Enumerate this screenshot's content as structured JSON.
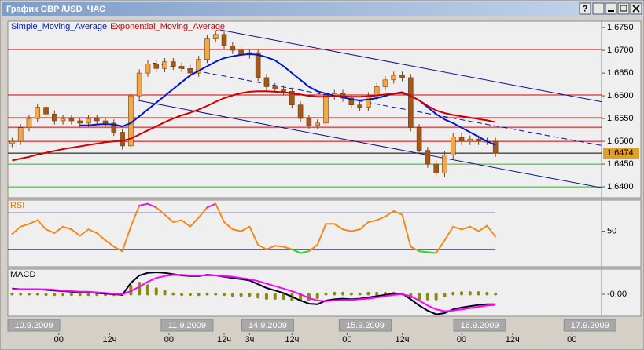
{
  "window": {
    "title": "График GBP /USD  ЧАС",
    "help_button": "?"
  },
  "chart_data": [
    {
      "type": "candlestick",
      "x": [
        1,
        3,
        5,
        7,
        9,
        11,
        13,
        15,
        17,
        19,
        21,
        23,
        25,
        27,
        29,
        31,
        33,
        35,
        37,
        39,
        41,
        43,
        45,
        47,
        49,
        51,
        53,
        55,
        57,
        59,
        61,
        63,
        65,
        67,
        69,
        71,
        73,
        75,
        77,
        79,
        81,
        83,
        85,
        87,
        89,
        91,
        93,
        95,
        97,
        99,
        101,
        103,
        105,
        107,
        109,
        111,
        113,
        115
      ],
      "open": [
        1.6495,
        1.65,
        1.653,
        1.655,
        1.6575,
        1.656,
        1.6545,
        1.655,
        1.6545,
        1.654,
        1.655,
        1.6545,
        1.654,
        1.652,
        1.649,
        1.66,
        1.665,
        1.667,
        1.666,
        1.6675,
        1.6665,
        1.666,
        1.665,
        1.668,
        1.6725,
        1.6735,
        1.671,
        1.67,
        1.669,
        1.6695,
        1.664,
        1.662,
        1.6615,
        1.661,
        1.658,
        1.655,
        1.6535,
        1.654,
        1.66,
        1.6605,
        1.6595,
        1.658,
        1.6575,
        1.66,
        1.662,
        1.6635,
        1.6645,
        1.664,
        1.653,
        1.648,
        1.645,
        1.643,
        1.647,
        1.651,
        1.65,
        1.6505,
        1.65,
        1.65
      ],
      "high": [
        1.6508,
        1.6538,
        1.6558,
        1.6583,
        1.6583,
        1.6568,
        1.6558,
        1.6558,
        1.6553,
        1.6558,
        1.6558,
        1.6553,
        1.6548,
        1.6528,
        1.6608,
        1.6658,
        1.6678,
        1.6678,
        1.6683,
        1.6683,
        1.6673,
        1.6668,
        1.6688,
        1.6733,
        1.6743,
        1.6743,
        1.6718,
        1.6708,
        1.6703,
        1.6703,
        1.6648,
        1.6628,
        1.6623,
        1.6618,
        1.6588,
        1.6558,
        1.6548,
        1.6608,
        1.6613,
        1.6613,
        1.6603,
        1.6588,
        1.6608,
        1.6628,
        1.6643,
        1.6653,
        1.6653,
        1.6648,
        1.6538,
        1.6488,
        1.6458,
        1.6478,
        1.6518,
        1.6518,
        1.6513,
        1.6513,
        1.6508,
        1.6508
      ],
      "low": [
        1.6487,
        1.6492,
        1.6522,
        1.6542,
        1.6552,
        1.6537,
        1.6537,
        1.6537,
        1.6532,
        1.6532,
        1.6537,
        1.6532,
        1.6512,
        1.6482,
        1.6482,
        1.6592,
        1.6642,
        1.6652,
        1.6652,
        1.6657,
        1.6652,
        1.6642,
        1.6642,
        1.6672,
        1.6717,
        1.6702,
        1.6692,
        1.6682,
        1.6682,
        1.6632,
        1.6612,
        1.6607,
        1.6602,
        1.6572,
        1.6542,
        1.6527,
        1.6527,
        1.6532,
        1.6592,
        1.6587,
        1.6572,
        1.6567,
        1.6567,
        1.6592,
        1.6612,
        1.6627,
        1.6632,
        1.6522,
        1.6472,
        1.6442,
        1.6422,
        1.6422,
        1.6462,
        1.6492,
        1.6492,
        1.6492,
        1.6492,
        1.6466
      ],
      "close": [
        1.65,
        1.653,
        1.655,
        1.6575,
        1.656,
        1.6545,
        1.655,
        1.6545,
        1.654,
        1.655,
        1.6545,
        1.654,
        1.652,
        1.649,
        1.66,
        1.665,
        1.667,
        1.666,
        1.6675,
        1.6665,
        1.666,
        1.665,
        1.668,
        1.6725,
        1.6735,
        1.671,
        1.67,
        1.669,
        1.6695,
        1.664,
        1.662,
        1.6615,
        1.661,
        1.658,
        1.655,
        1.6535,
        1.654,
        1.66,
        1.6605,
        1.6595,
        1.658,
        1.6575,
        1.66,
        1.662,
        1.6635,
        1.6645,
        1.664,
        1.653,
        1.648,
        1.645,
        1.643,
        1.647,
        1.651,
        1.65,
        1.6505,
        1.65,
        1.65,
        1.6474
      ],
      "up_color": "#f0a848",
      "down_color": "#a0581c",
      "wick_color": "#7a4010",
      "series": [
        {
          "name": "Simple_Moving_Average",
          "color": "#0018c8",
          "values": [
            null,
            null,
            null,
            null,
            null,
            null,
            null,
            null,
            1.6535,
            1.6535,
            1.6537,
            1.6538,
            1.6537,
            1.6533,
            1.654,
            1.6555,
            1.657,
            1.6585,
            1.66,
            1.6615,
            1.663,
            1.6645,
            1.6655,
            1.6665,
            1.6675,
            1.6683,
            1.6687,
            1.669,
            1.6692,
            1.669,
            1.6685,
            1.6678,
            1.6665,
            1.665,
            1.6635,
            1.662,
            1.661,
            1.6605,
            1.66,
            1.6597,
            1.6592,
            1.659,
            1.6592,
            1.6595,
            1.66,
            1.6605,
            1.6608,
            1.66,
            1.659,
            1.6575,
            1.656,
            1.6548,
            1.654,
            1.653,
            1.652,
            1.651,
            1.65,
            1.6492
          ]
        },
        {
          "name": "Exponential_Moving_Average",
          "color": "#d00000",
          "values": [
            1.6458,
            1.6462,
            1.6466,
            1.6471,
            1.6475,
            1.6479,
            1.6483,
            1.6486,
            1.6489,
            1.6492,
            1.6495,
            1.6498,
            1.65,
            1.6501,
            1.6506,
            1.6515,
            1.6524,
            1.6533,
            1.6542,
            1.655,
            1.6557,
            1.6563,
            1.657,
            1.6578,
            1.6587,
            1.6595,
            1.6601,
            1.6606,
            1.6609,
            1.661,
            1.661,
            1.6609,
            1.6608,
            1.6606,
            1.6603,
            1.66,
            1.6598,
            1.6598,
            1.6599,
            1.6599,
            1.6598,
            1.6598,
            1.6599,
            1.6601,
            1.6603,
            1.6605,
            1.6606,
            1.66,
            1.659,
            1.6578,
            1.6568,
            1.6562,
            1.6558,
            1.6555,
            1.6552,
            1.6549,
            1.6546,
            1.6542
          ]
        }
      ],
      "levels": [
        {
          "value": 1.6702,
          "color": "#d00000"
        },
        {
          "value": 1.6602,
          "color": "#d00000"
        },
        {
          "value": 1.6552,
          "color": "#d00000"
        },
        {
          "value": 1.6531,
          "color": "#d00000"
        },
        {
          "value": 1.65,
          "color": "#d00000"
        },
        {
          "value": 1.645,
          "color": "#22bb22"
        },
        {
          "value": 1.64,
          "color": "#22bb22"
        }
      ],
      "trendlines": [
        {
          "x": [
            50,
            140
          ],
          "values": [
            1.6745,
            1.6587
          ],
          "color": "#101090",
          "dashed": false
        },
        {
          "x": [
            34.3,
            140
          ],
          "values": [
            1.6672,
            1.6491
          ],
          "color": "#101090",
          "dashed": true
        },
        {
          "x": [
            30.6,
            140
          ],
          "values": [
            1.659,
            1.6398
          ],
          "color": "#101090",
          "dashed": false
        }
      ],
      "last_price": 1.6474,
      "last_price_color": "#e0a030",
      "xlim": [
        0,
        140
      ],
      "ylim": [
        1.6376,
        1.6764
      ],
      "yticks": [
        {
          "value": 1.675,
          "label": "1.6750"
        },
        {
          "value": 1.67,
          "label": "1.6700"
        },
        {
          "value": 1.665,
          "label": "1.6650"
        },
        {
          "value": 1.66,
          "label": "1.6600"
        },
        {
          "value": 1.655,
          "label": "1.6550"
        },
        {
          "value": 1.65,
          "label": "1.6500"
        },
        {
          "value": 1.645,
          "label": "1.6450"
        },
        {
          "value": 1.64,
          "label": "1.6400"
        }
      ]
    },
    {
      "type": "line",
      "title": "RSI",
      "title_color": "#e07800",
      "x": [
        1,
        3,
        5,
        7,
        9,
        11,
        13,
        15,
        17,
        19,
        21,
        23,
        25,
        27,
        29,
        31,
        33,
        35,
        37,
        39,
        41,
        43,
        45,
        47,
        49,
        51,
        53,
        55,
        57,
        59,
        61,
        63,
        65,
        67,
        69,
        71,
        73,
        75,
        77,
        79,
        81,
        83,
        85,
        87,
        89,
        91,
        93,
        95,
        97,
        99,
        101,
        103,
        105,
        107,
        109,
        111,
        113,
        115
      ],
      "values": [
        47,
        55,
        58,
        62,
        52,
        48,
        55,
        52,
        45,
        52,
        48,
        40,
        33,
        28,
        55,
        78,
        80,
        76,
        68,
        60,
        62,
        55,
        65,
        76,
        80,
        60,
        52,
        50,
        55,
        35,
        30,
        34,
        33,
        30,
        26,
        28,
        35,
        58,
        58,
        52,
        50,
        52,
        60,
        62,
        66,
        72,
        68,
        33,
        28,
        27,
        26,
        40,
        55,
        52,
        55,
        50,
        56,
        44
      ],
      "color": "#f08a20",
      "over_color": "#e020e0",
      "under_color": "#22dd22",
      "levels": [
        70,
        30
      ],
      "level_color": "#101090",
      "xlim": [
        0,
        140
      ],
      "ylim": [
        11,
        84
      ],
      "yticks": [
        50
      ]
    },
    {
      "type": "macd",
      "title": "MACD",
      "title_color": "#000000",
      "x": [
        1,
        3,
        5,
        7,
        9,
        11,
        13,
        15,
        17,
        19,
        21,
        23,
        25,
        27,
        29,
        31,
        33,
        35,
        37,
        39,
        41,
        43,
        45,
        47,
        49,
        51,
        53,
        55,
        57,
        59,
        61,
        63,
        65,
        67,
        69,
        71,
        73,
        75,
        77,
        79,
        81,
        83,
        85,
        87,
        89,
        91,
        93,
        95,
        97,
        99,
        101,
        103,
        105,
        107,
        109,
        111,
        113,
        115
      ],
      "series": [
        {
          "color": "#000020",
          "values": [
            0.0009,
            0.0008,
            0.0008,
            0.0008,
            0.0007,
            0.0006,
            0.0005,
            0.0004,
            0.0003,
            0.0003,
            0.0002,
            0.0001,
            0,
            -0.0001,
            0.0018,
            0.003,
            0.0034,
            0.0035,
            0.0034,
            0.0032,
            0.003,
            0.0029,
            0.0029,
            0.0031,
            0.003,
            0.0028,
            0.0026,
            0.0024,
            0.0022,
            0.0016,
            0.001,
            0.0006,
            0.0002,
            -0.0004,
            -0.001,
            -0.0015,
            -0.0016,
            -0.001,
            -0.0008,
            -0.0007,
            -0.0008,
            -0.0007,
            -0.0005,
            -0.0003,
            -0.0001,
            0.0001,
            0.0001,
            -0.0008,
            -0.0018,
            -0.0026,
            -0.0032,
            -0.003,
            -0.0024,
            -0.0021,
            -0.0019,
            -0.0017,
            -0.0016,
            -0.0016
          ]
        },
        {
          "color": "#ff00ff",
          "values": [
            0.0008,
            0.0008,
            0.0008,
            0.0008,
            0.0008,
            0.0007,
            0.0006,
            0.0005,
            0.0004,
            0.0004,
            0.0003,
            0.0002,
            0.0001,
            0,
            0.0005,
            0.0012,
            0.002,
            0.0026,
            0.0029,
            0.0031,
            0.0031,
            0.003,
            0.003,
            0.003,
            0.003,
            0.0029,
            0.0028,
            0.0026,
            0.0024,
            0.0021,
            0.0017,
            0.0013,
            0.0009,
            0.0005,
            0,
            -0.0006,
            -0.001,
            -0.0011,
            -0.001,
            -0.0009,
            -0.0009,
            -0.0008,
            -0.0007,
            -0.0005,
            -0.0003,
            -0.0001,
            0,
            -0.0003,
            -0.001,
            -0.0018,
            -0.0024,
            -0.0027,
            -0.0026,
            -0.0024,
            -0.0022,
            -0.002,
            -0.0018,
            -0.0017
          ]
        }
      ],
      "histogram": {
        "color": "#8a8a10",
        "values": [
          0.0001,
          0,
          0,
          0,
          -0.0001,
          -0.0001,
          -0.0001,
          -0.0001,
          -0.0001,
          -0.0001,
          -0.0001,
          -0.0001,
          -0.0001,
          -0.0001,
          0.0013,
          0.0018,
          0.0014,
          0.0009,
          0.0005,
          0.0001,
          -0.0001,
          -0.0001,
          -0.0001,
          0.0001,
          0,
          -0.0001,
          -0.0002,
          -0.0002,
          -0.0002,
          -0.0005,
          -0.0007,
          -0.0007,
          -0.0007,
          -0.0009,
          -0.001,
          -0.0009,
          -0.0006,
          0.0001,
          0.0002,
          0.0002,
          0.0001,
          0.0001,
          0.0002,
          0.0002,
          0.0002,
          0.0002,
          0.0001,
          -0.0005,
          -0.0008,
          -0.0008,
          -0.0008,
          -0.0003,
          0.0002,
          0.0003,
          0.0003,
          0.0003,
          0.0002,
          0.0001
        ]
      },
      "xlim": [
        0,
        140
      ],
      "ylim": [
        -0.0035,
        0.004
      ],
      "yticks": [
        {
          "value": 0,
          "label": "-0.00"
        }
      ],
      "xticks": [
        {
          "value": 12,
          "label": "00"
        },
        {
          "value": 24,
          "label": "12ч"
        },
        {
          "value": 38,
          "label": "00"
        },
        {
          "value": 51,
          "label": "12ч"
        },
        {
          "value": 57,
          "label": "3ч"
        },
        {
          "value": 67,
          "label": "12ч"
        },
        {
          "value": 80,
          "label": "00"
        },
        {
          "value": 93,
          "label": "12ч"
        },
        {
          "value": 107,
          "label": "00"
        },
        {
          "value": 119,
          "label": "12ч"
        },
        {
          "value": 133,
          "label": "00"
        }
      ],
      "xticks_dates": [
        {
          "value": 0,
          "label": "10.9.2009"
        },
        {
          "value": 38,
          "label": "11.9.2009"
        },
        {
          "value": 57,
          "label": "14.9.2009"
        },
        {
          "value": 80,
          "label": "15.9.2009"
        },
        {
          "value": 107,
          "label": "16.9.2009"
        },
        {
          "value": 133,
          "label": "17.9.2009"
        }
      ]
    }
  ]
}
